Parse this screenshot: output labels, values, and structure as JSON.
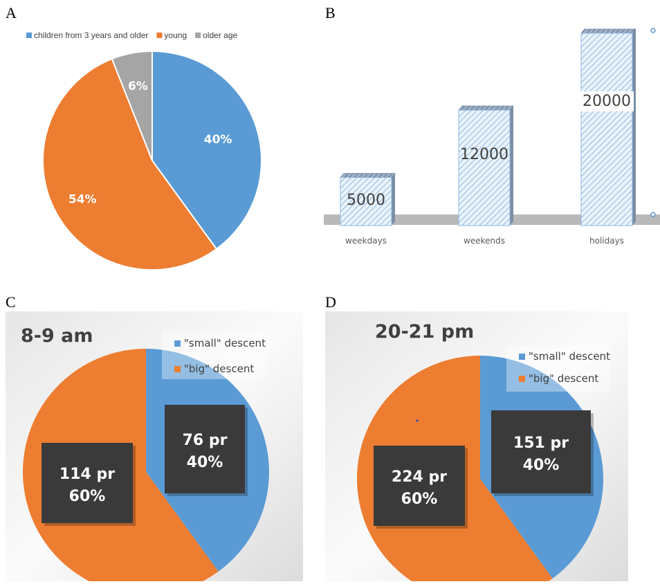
{
  "panel_labels": {
    "a": "A",
    "b": "B",
    "c": "C",
    "d": "D"
  },
  "colors": {
    "blue": "#5b9bd5",
    "orange": "#ed7d31",
    "gray": "#a5a5a5",
    "box": "#3a3a3a"
  },
  "chart_data": [
    {
      "type": "pie",
      "panel": "A",
      "categories": [
        "children from 3 years and older",
        "young",
        "older age"
      ],
      "values": [
        40,
        54,
        6
      ],
      "labels": [
        "40%",
        "54%",
        "6%"
      ],
      "legend": "top"
    },
    {
      "type": "bar",
      "panel": "B",
      "categories": [
        "weekdays",
        "weekends",
        "holidays"
      ],
      "values": [
        5000,
        12000,
        20000
      ],
      "labels": [
        "5000",
        "12000",
        "20000"
      ]
    },
    {
      "type": "pie",
      "panel": "C",
      "title": "8-9 am",
      "categories": [
        "\"small\" descent",
        "\"big\" descent"
      ],
      "values": [
        40,
        60
      ],
      "labels": [
        [
          "76 pr",
          "40%"
        ],
        [
          "114 pr",
          "60%"
        ]
      ],
      "legend": "top-right"
    },
    {
      "type": "pie",
      "panel": "D",
      "title": "20-21 pm",
      "categories": [
        "\"small\" descent",
        "\"big\" descent"
      ],
      "values": [
        40,
        60
      ],
      "labels": [
        [
          "151 pr",
          "40%"
        ],
        [
          "224 pr",
          "60%"
        ]
      ],
      "legend": "top-right"
    }
  ]
}
